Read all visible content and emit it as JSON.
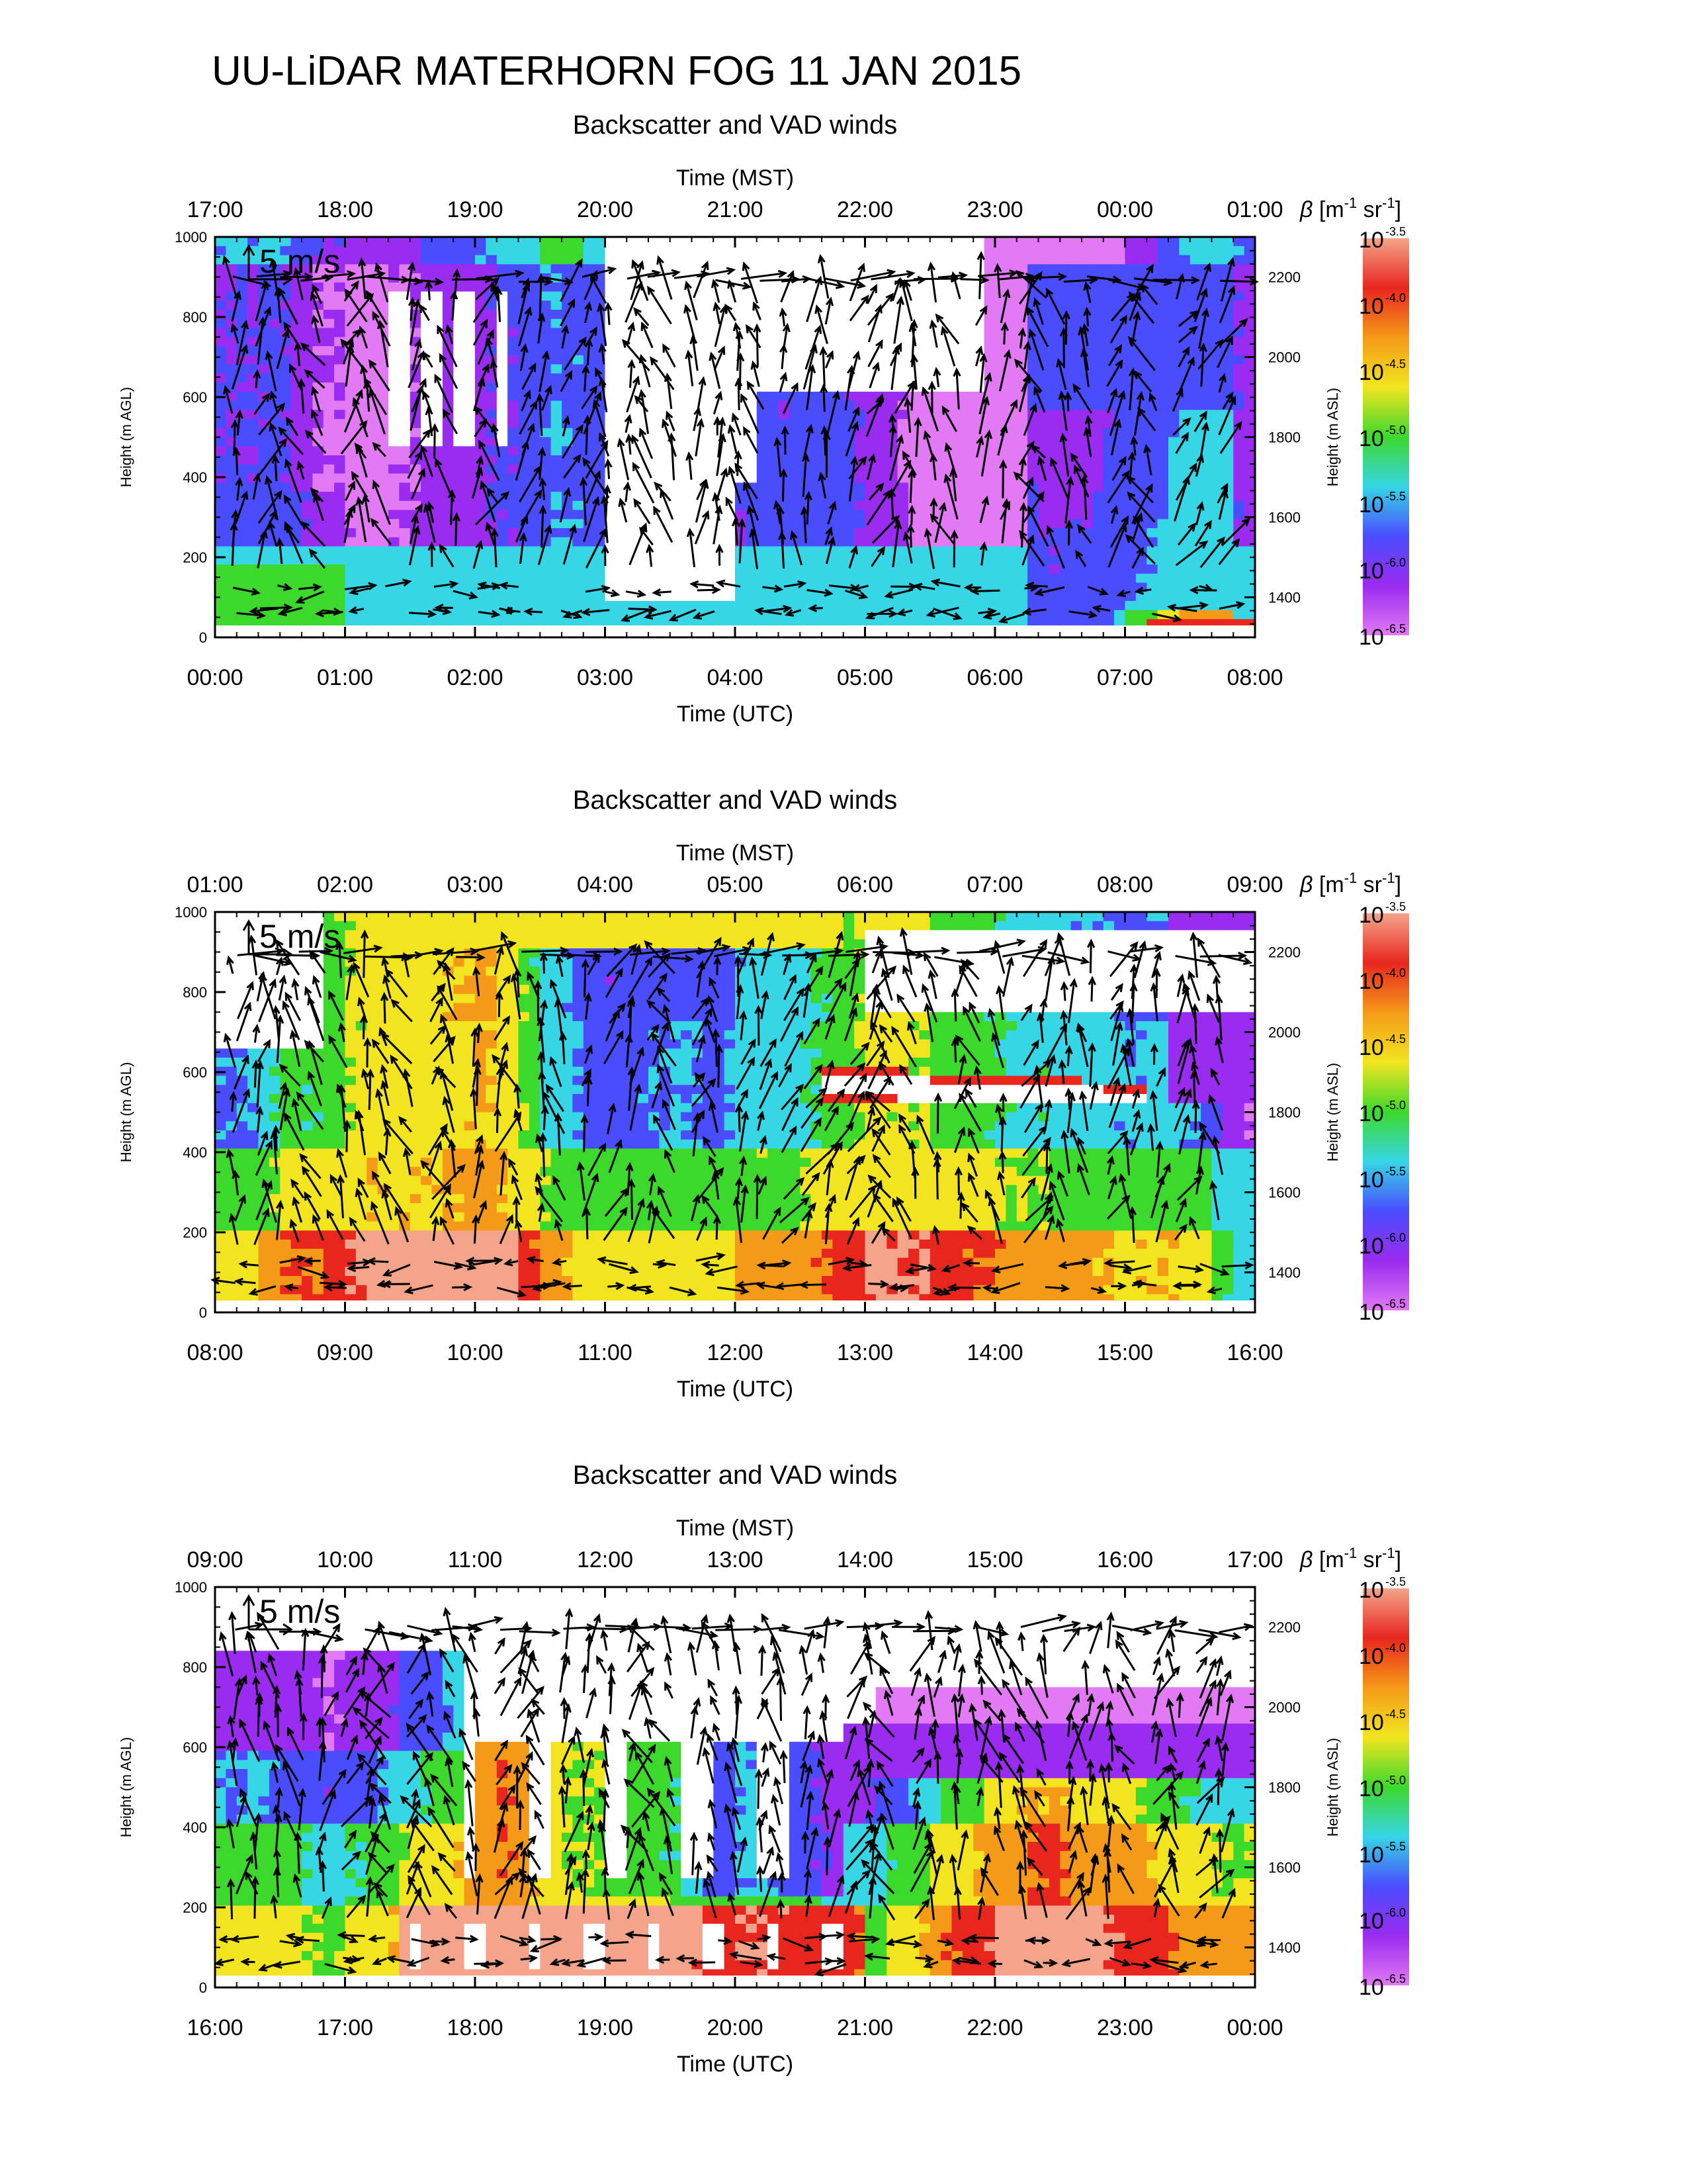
{
  "page": {
    "title": "UU-LiDAR MATERHORN FOG  11 JAN 2015"
  },
  "colors": {
    "high": "#f4a48a",
    "red": "#e8261e",
    "orange": "#f59a18",
    "yellow": "#f2e51f",
    "green": "#3dd82c",
    "cyan": "#36d6e6",
    "blue": "#4a4dff",
    "purple": "#9a2bf0",
    "lavender": "#e27af5",
    "missing": "#ffffff",
    "arrow": "#000000"
  },
  "chart_data": [
    {
      "type": "heatmap",
      "subtitle": "Backscatter and VAD winds",
      "x_top_label": "Time (MST)",
      "x_top_ticks": [
        "17:00",
        "18:00",
        "19:00",
        "20:00",
        "21:00",
        "22:00",
        "23:00",
        "00:00",
        "01:00"
      ],
      "x_bottom_label": "Time (UTC)",
      "x_bottom_ticks": [
        "00:00",
        "01:00",
        "02:00",
        "03:00",
        "04:00",
        "05:00",
        "06:00",
        "07:00",
        "08:00"
      ],
      "y_left_label": "Height (m AGL)",
      "y_left_ticks": [
        "0",
        "200",
        "400",
        "600",
        "800",
        "1000"
      ],
      "ylim": [
        0,
        1000
      ],
      "y_right_label": "Height (m ASL)",
      "y_right_ticks": [
        "1400",
        "1600",
        "1800",
        "2000",
        "2200"
      ],
      "reference_arrow": "5 m/s",
      "colorbar": {
        "label": "β [m⁻¹ sr⁻¹]",
        "label_parts": {
          "symbol": "β",
          "open": "[m",
          "e1": "-1",
          "mid": " sr",
          "e2": "-1",
          "close": "]"
        },
        "base": "10",
        "exponents": [
          "-3.5",
          "-4.0",
          "-4.5",
          "-5.0",
          "-5.5",
          "-6.0",
          "-6.5"
        ],
        "scale": "log"
      },
      "x_range_utc_hours": [
        0,
        8
      ],
      "features": "fog layer near surface at 06:45-08:00 UTC with backscatter ~1e-4; clear/low backscatter above; data gaps 03:00-06:00 UTC above 200 m"
    },
    {
      "type": "heatmap",
      "subtitle": "Backscatter and VAD winds",
      "x_top_label": "Time (MST)",
      "x_top_ticks": [
        "01:00",
        "02:00",
        "03:00",
        "04:00",
        "05:00",
        "06:00",
        "07:00",
        "08:00",
        "09:00"
      ],
      "x_bottom_label": "Time (UTC)",
      "x_bottom_ticks": [
        "08:00",
        "09:00",
        "10:00",
        "11:00",
        "12:00",
        "13:00",
        "14:00",
        "15:00",
        "16:00"
      ],
      "y_left_label": "Height (m AGL)",
      "y_left_ticks": [
        "0",
        "200",
        "400",
        "600",
        "800",
        "1000"
      ],
      "ylim": [
        0,
        1000
      ],
      "y_right_label": "Height (m ASL)",
      "y_right_ticks": [
        "1400",
        "1600",
        "1800",
        "2000",
        "2200"
      ],
      "reference_arrow": "5 m/s",
      "colorbar": {
        "label": "β [m⁻¹ sr⁻¹]",
        "label_parts": {
          "symbol": "β",
          "open": "[m",
          "e1": "-1",
          "mid": " sr",
          "e2": "-1",
          "close": "]"
        },
        "base": "10",
        "exponents": [
          "-3.5",
          "-4.0",
          "-4.5",
          "-5.0",
          "-5.5",
          "-6.0",
          "-6.5"
        ],
        "scale": "log"
      },
      "x_range_utc_hours": [
        8,
        16
      ],
      "features": "fog layer 50-250 m throughout with peaks ~1e-4.3; elevated cloud layer ~550-650 m after 14:30 UTC"
    },
    {
      "type": "heatmap",
      "subtitle": "Backscatter and VAD winds",
      "x_top_label": "Time (MST)",
      "x_top_ticks": [
        "09:00",
        "10:00",
        "11:00",
        "12:00",
        "13:00",
        "14:00",
        "15:00",
        "16:00",
        "17:00"
      ],
      "x_bottom_label": "Time (UTC)",
      "x_bottom_ticks": [
        "16:00",
        "17:00",
        "18:00",
        "19:00",
        "20:00",
        "21:00",
        "22:00",
        "23:00",
        "00:00"
      ],
      "y_left_label": "Height (m AGL)",
      "y_left_ticks": [
        "0",
        "200",
        "400",
        "600",
        "800",
        "1000"
      ],
      "ylim": [
        0,
        1000
      ],
      "y_right_label": "Height (m ASL)",
      "y_right_ticks": [
        "1400",
        "1600",
        "1800",
        "2000",
        "2200"
      ],
      "reference_arrow": "5 m/s",
      "colorbar": {
        "label": "β [m⁻¹ sr⁻¹]",
        "label_parts": {
          "symbol": "β",
          "open": "[m",
          "e1": "-1",
          "mid": " sr",
          "e2": "-1",
          "close": "]"
        },
        "base": "10",
        "exponents": [
          "-3.5",
          "-4.0",
          "-4.5",
          "-5.0",
          "-5.5",
          "-6.0",
          "-6.5"
        ],
        "scale": "log"
      },
      "x_range_utc_hours": [
        16,
        24
      ],
      "features": "dense fog 50-200 m between 17:30 and 21:00 UTC (saturated, >1e-4); mixed layer up to ~600 m afterward"
    }
  ]
}
